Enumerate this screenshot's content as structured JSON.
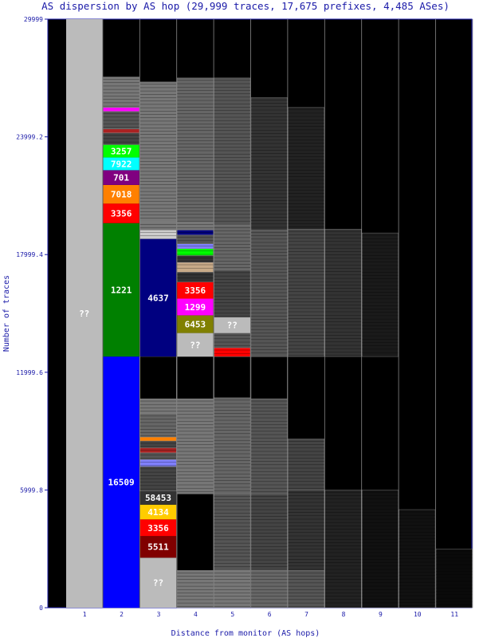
{
  "chart_data": {
    "type": "bar",
    "title": "AS dispersion by AS hop (29,999 traces, 17,675 prefixes, 4,485 ASes)",
    "xlabel": "Distance from monitor (AS hops)",
    "ylabel": "Number of traces",
    "ylim": [
      0,
      29999
    ],
    "x_ticks": [
      "1",
      "2",
      "3",
      "4",
      "5",
      "6",
      "7",
      "8",
      "9",
      "10",
      "11"
    ],
    "y_ticks": [
      "0",
      "5999.8",
      "11999.6",
      "17999.4",
      "23999.2",
      "29999"
    ],
    "background_color": "#000000",
    "columns": [
      {
        "hop": "1",
        "segments": [
          {
            "label": "??",
            "from": 0,
            "to": 29999,
            "color": "#bbbbbb"
          }
        ]
      },
      {
        "hop": "2",
        "segments": [
          {
            "label": "16509",
            "from": 0,
            "to": 12800,
            "color": "#0000ff"
          },
          {
            "label": "1221",
            "from": 12800,
            "to": 19600,
            "color": "#008000"
          },
          {
            "label": "3356",
            "from": 19600,
            "to": 20600,
            "color": "#ff0000"
          },
          {
            "label": "7018",
            "from": 20600,
            "to": 21550,
            "color": "#ff8000"
          },
          {
            "label": "701",
            "from": 21550,
            "to": 22300,
            "color": "#800080"
          },
          {
            "label": "7922",
            "from": 22300,
            "to": 22950,
            "color": "#00ffff"
          },
          {
            "label": "3257",
            "from": 22950,
            "to": 23600,
            "color": "#00ff00"
          },
          {
            "label": "",
            "from": 23600,
            "to": 24200,
            "color": "#444444"
          },
          {
            "label": "",
            "from": 24200,
            "to": 24400,
            "color": "#aa2222"
          },
          {
            "label": "",
            "from": 24400,
            "to": 25300,
            "color": "#555555"
          },
          {
            "label": "",
            "from": 25300,
            "to": 25500,
            "color": "#ff00ff"
          },
          {
            "label": "",
            "from": 25500,
            "to": 27050,
            "color": "#777777"
          }
        ]
      },
      {
        "hop": "3",
        "segments": [
          {
            "label": "??",
            "from": 0,
            "to": 2550,
            "color": "#bbbbbb"
          },
          {
            "label": "5511",
            "from": 2550,
            "to": 3650,
            "color": "#800000"
          },
          {
            "label": "3356",
            "from": 3650,
            "to": 4500,
            "color": "#ff0000"
          },
          {
            "label": "4134",
            "from": 4500,
            "to": 5250,
            "color": "#ffcc00"
          },
          {
            "label": "58453",
            "from": 5250,
            "to": 5950,
            "color": "#333333"
          },
          {
            "label": "",
            "from": 5950,
            "to": 7200,
            "color": "#444444"
          },
          {
            "label": "",
            "from": 7200,
            "to": 7550,
            "color": "#8080ff"
          },
          {
            "label": "",
            "from": 7550,
            "to": 7900,
            "color": "#555555"
          },
          {
            "label": "",
            "from": 7900,
            "to": 8150,
            "color": "#aa2222"
          },
          {
            "label": "",
            "from": 8150,
            "to": 8500,
            "color": "#444444"
          },
          {
            "label": "",
            "from": 8500,
            "to": 8700,
            "color": "#ff8000"
          },
          {
            "label": "",
            "from": 8700,
            "to": 9900,
            "color": "#666666"
          },
          {
            "label": "",
            "from": 9900,
            "to": 10650,
            "color": "#777777"
          },
          {
            "label": "",
            "from": 10650,
            "to": 12800,
            "color": "#000000"
          },
          {
            "label": "4637",
            "from": 12800,
            "to": 18800,
            "color": "#000080"
          },
          {
            "label": "",
            "from": 18800,
            "to": 19250,
            "color": "#cccccc"
          },
          {
            "label": "",
            "from": 19250,
            "to": 19650,
            "color": "#777777"
          },
          {
            "label": "",
            "from": 19650,
            "to": 26800,
            "color": "#777777"
          }
        ]
      },
      {
        "hop": "4",
        "segments": [
          {
            "label": "",
            "from": 0,
            "to": 1900,
            "color": "#777777"
          },
          {
            "label": "",
            "from": 1900,
            "to": 5800,
            "color": "#000000"
          },
          {
            "label": "",
            "from": 5800,
            "to": 10650,
            "color": "#777777"
          },
          {
            "label": "",
            "from": 10650,
            "to": 12800,
            "color": "#000000"
          },
          {
            "label": "??",
            "from": 12800,
            "to": 14000,
            "color": "#bbbbbb"
          },
          {
            "label": "6453",
            "from": 14000,
            "to": 14900,
            "color": "#808000"
          },
          {
            "label": "1299",
            "from": 14900,
            "to": 15750,
            "color": "#ff00ff"
          },
          {
            "label": "3356",
            "from": 15750,
            "to": 16600,
            "color": "#ff0000"
          },
          {
            "label": "",
            "from": 16600,
            "to": 17100,
            "color": "#333333"
          },
          {
            "label": "",
            "from": 17100,
            "to": 17600,
            "color": "#c8aa88"
          },
          {
            "label": "",
            "from": 17600,
            "to": 17950,
            "color": "#333333"
          },
          {
            "label": "",
            "from": 17950,
            "to": 18300,
            "color": "#00ff00"
          },
          {
            "label": "",
            "from": 18300,
            "to": 18550,
            "color": "#8080ff"
          },
          {
            "label": "",
            "from": 18550,
            "to": 19000,
            "color": "#555555"
          },
          {
            "label": "",
            "from": 19000,
            "to": 19250,
            "color": "#000080"
          },
          {
            "label": "",
            "from": 19250,
            "to": 19650,
            "color": "#777777"
          },
          {
            "label": "",
            "from": 19650,
            "to": 27000,
            "color": "#666666"
          }
        ]
      },
      {
        "hop": "5",
        "segments": [
          {
            "label": "",
            "from": 0,
            "to": 1900,
            "color": "#777777"
          },
          {
            "label": "",
            "from": 1900,
            "to": 5800,
            "color": "#555555"
          },
          {
            "label": "",
            "from": 5800,
            "to": 10700,
            "color": "#666666"
          },
          {
            "label": "",
            "from": 10700,
            "to": 12800,
            "color": "#000000"
          },
          {
            "label": "",
            "from": 12800,
            "to": 13250,
            "color": "#ff0000"
          },
          {
            "label": "",
            "from": 13250,
            "to": 14000,
            "color": "#555555"
          },
          {
            "label": "??",
            "from": 14000,
            "to": 14800,
            "color": "#bbbbbb"
          },
          {
            "label": "",
            "from": 14800,
            "to": 17200,
            "color": "#444444"
          },
          {
            "label": "",
            "from": 17200,
            "to": 19500,
            "color": "#666666"
          },
          {
            "label": "",
            "from": 19500,
            "to": 27000,
            "color": "#555555"
          }
        ]
      },
      {
        "hop": "6",
        "segments": [
          {
            "label": "",
            "from": 0,
            "to": 1900,
            "color": "#666666"
          },
          {
            "label": "",
            "from": 1900,
            "to": 5800,
            "color": "#444444"
          },
          {
            "label": "",
            "from": 5800,
            "to": 10650,
            "color": "#555555"
          },
          {
            "label": "",
            "from": 10650,
            "to": 12800,
            "color": "#000000"
          },
          {
            "label": "",
            "from": 12800,
            "to": 19250,
            "color": "#555555"
          },
          {
            "label": "",
            "from": 19250,
            "to": 26000,
            "color": "#333333"
          }
        ]
      },
      {
        "hop": "7",
        "segments": [
          {
            "label": "",
            "from": 0,
            "to": 1900,
            "color": "#555555"
          },
          {
            "label": "",
            "from": 1900,
            "to": 6000,
            "color": "#333333"
          },
          {
            "label": "",
            "from": 6000,
            "to": 8600,
            "color": "#444444"
          },
          {
            "label": "",
            "from": 12800,
            "to": 19300,
            "color": "#444444"
          },
          {
            "label": "",
            "from": 19300,
            "to": 25500,
            "color": "#222222"
          }
        ]
      },
      {
        "hop": "8",
        "segments": [
          {
            "label": "",
            "from": 0,
            "to": 6000,
            "color": "#222222"
          },
          {
            "label": "",
            "from": 12800,
            "to": 19300,
            "color": "#333333"
          }
        ]
      },
      {
        "hop": "9",
        "segments": [
          {
            "label": "",
            "from": 0,
            "to": 6000,
            "color": "#111111"
          },
          {
            "label": "",
            "from": 12800,
            "to": 19100,
            "color": "#1a1a1a"
          }
        ]
      },
      {
        "hop": "10",
        "segments": [
          {
            "label": "",
            "from": 0,
            "to": 5000,
            "color": "#111111"
          }
        ]
      },
      {
        "hop": "11",
        "segments": [
          {
            "label": "",
            "from": 0,
            "to": 3000,
            "color": "#0a0a0a"
          }
        ]
      }
    ]
  }
}
